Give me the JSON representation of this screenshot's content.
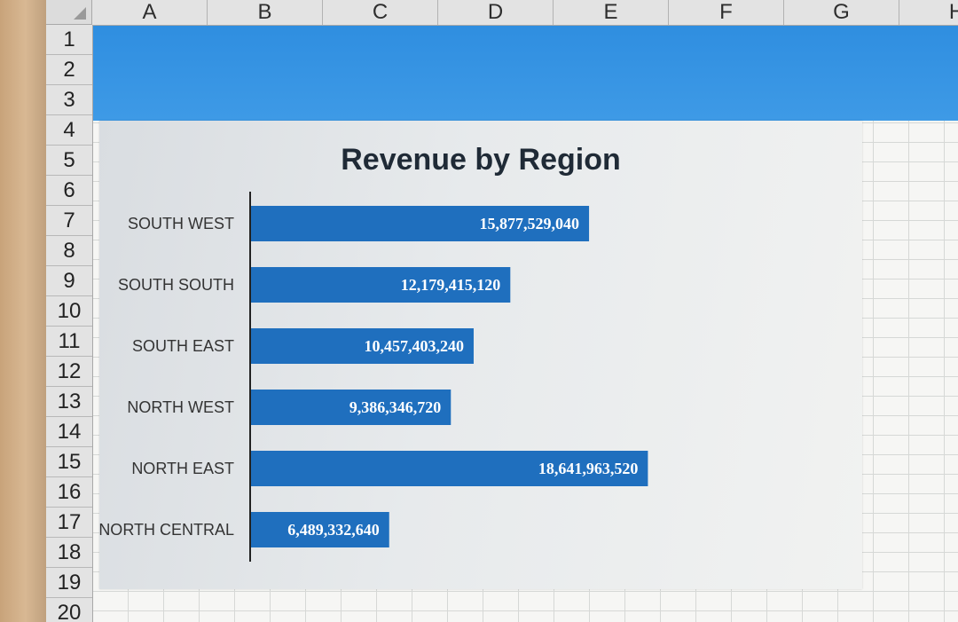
{
  "spreadsheet": {
    "columns": [
      "A",
      "B",
      "C",
      "D",
      "E",
      "F",
      "G",
      "H"
    ],
    "rows": [
      "1",
      "2",
      "3",
      "4",
      "5",
      "6",
      "7",
      "8",
      "9",
      "10",
      "11",
      "12",
      "13",
      "14",
      "15",
      "16",
      "17",
      "18",
      "19",
      "20"
    ]
  },
  "colors": {
    "band": "#3a95e3",
    "bar": "#1f6fbe",
    "axis": "#222222",
    "bar_label": "#ffffff",
    "category_label": "#333333"
  },
  "chart_data": {
    "type": "bar",
    "orientation": "horizontal",
    "title": "Revenue by Region",
    "categories": [
      "SOUTH WEST",
      "SOUTH SOUTH",
      "SOUTH EAST",
      "NORTH WEST",
      "NORTH EAST",
      "NORTH CENTRAL"
    ],
    "values": [
      15877529040,
      12179415120,
      10457403240,
      9386346720,
      18641963520,
      6489332640
    ],
    "data_labels": [
      "15,877,529,040",
      "12,179,415,120",
      "10,457,403,240",
      "9,386,346,720",
      "18,641,963,520",
      "6,489,332,640"
    ],
    "xlim": [
      0,
      25000000000
    ],
    "grid": false,
    "legend": "none"
  }
}
